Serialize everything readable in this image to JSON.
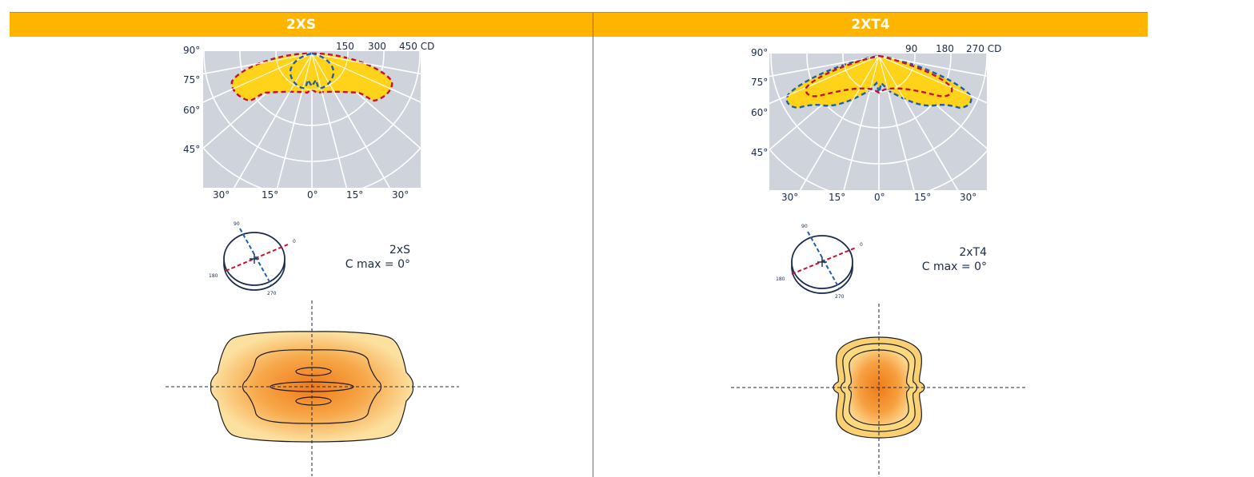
{
  "headers": {
    "left": "2XS",
    "right": "2XT4"
  },
  "left": {
    "polar": {
      "cd_labels": [
        "150",
        "300",
        "450 CD"
      ],
      "angle_labels": [
        "90°",
        "75°",
        "60°",
        "45°"
      ],
      "bottom_labels": [
        "30°",
        "15°",
        "0°",
        "15°",
        "30°"
      ]
    },
    "orientation": {
      "t90": "90",
      "t0": "0",
      "t180": "180",
      "t270": "270"
    },
    "caption": {
      "line1": "2xS",
      "line2": "C max = 0°"
    }
  },
  "right": {
    "polar": {
      "cd_labels": [
        "90",
        "180",
        "270 CD"
      ],
      "angle_labels": [
        "90°",
        "75°",
        "60°",
        "45°"
      ],
      "bottom_labels": [
        "30°",
        "15°",
        "0°",
        "15°",
        "30°"
      ]
    },
    "orientation": {
      "t90": "90",
      "t0": "0",
      "t180": "180",
      "t270": "270"
    },
    "caption": {
      "line1": "2xT4",
      "line2": "C max = 0°"
    }
  },
  "colors": {
    "header": "#ffb400",
    "polar_bg": "#cfd3db",
    "curve_fill": "#ffd31a",
    "red_dash": "#c4122f",
    "blue_dash": "#1f5fa8",
    "iso_outer": "#fbd073",
    "iso_inner": "#f08a20"
  }
}
